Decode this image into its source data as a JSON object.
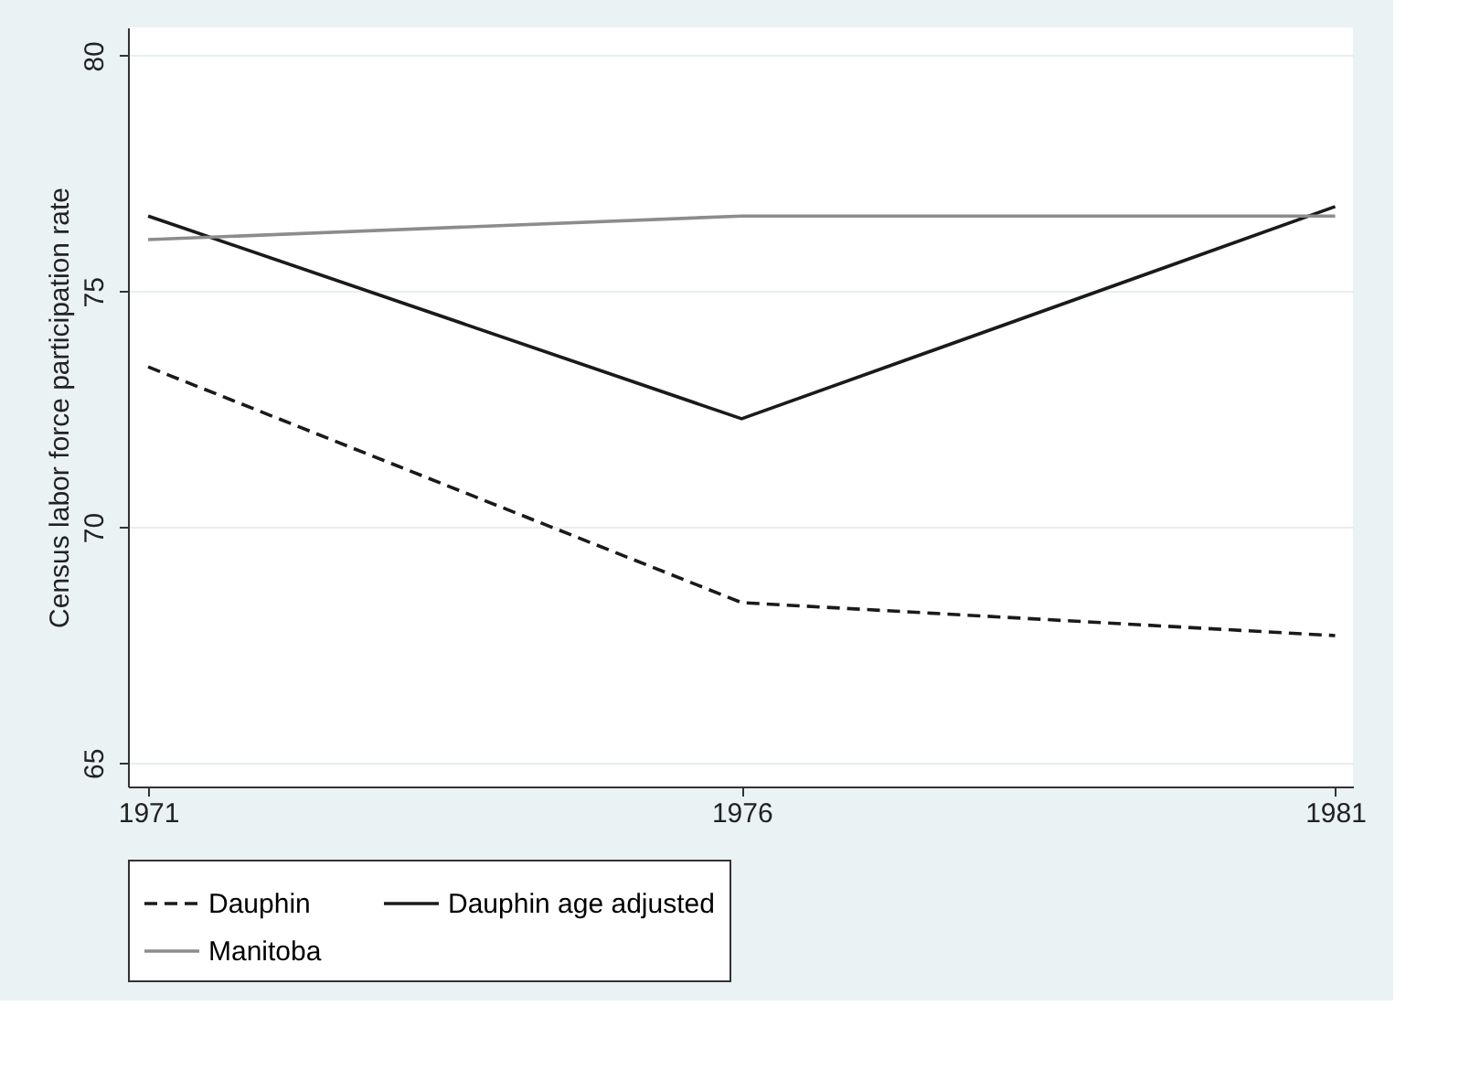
{
  "chart_data": {
    "type": "line",
    "ylabel": "Census labor force participation rate",
    "x": [
      1971,
      1976,
      1981
    ],
    "series": [
      {
        "name": "Dauphin",
        "color": "#1a1a1a",
        "line_style": "dashed",
        "values": [
          73.4,
          68.4,
          67.7
        ]
      },
      {
        "name": "Dauphin age adjusted",
        "color": "#1a1a1a",
        "line_style": "solid",
        "values": [
          76.6,
          72.3,
          76.8
        ]
      },
      {
        "name": "Manitoba",
        "color": "#8c8c8c",
        "line_style": "solid",
        "values": [
          76.1,
          76.6,
          76.6
        ]
      }
    ],
    "xlim": [
      1970.83,
      1981.15
    ],
    "xticks": [
      1971,
      1976,
      1981
    ],
    "ylim": [
      64.5,
      80.6
    ],
    "yticks": [
      65,
      70,
      75,
      80
    ],
    "grid": "y",
    "legend": "bottom",
    "marker": "none"
  }
}
